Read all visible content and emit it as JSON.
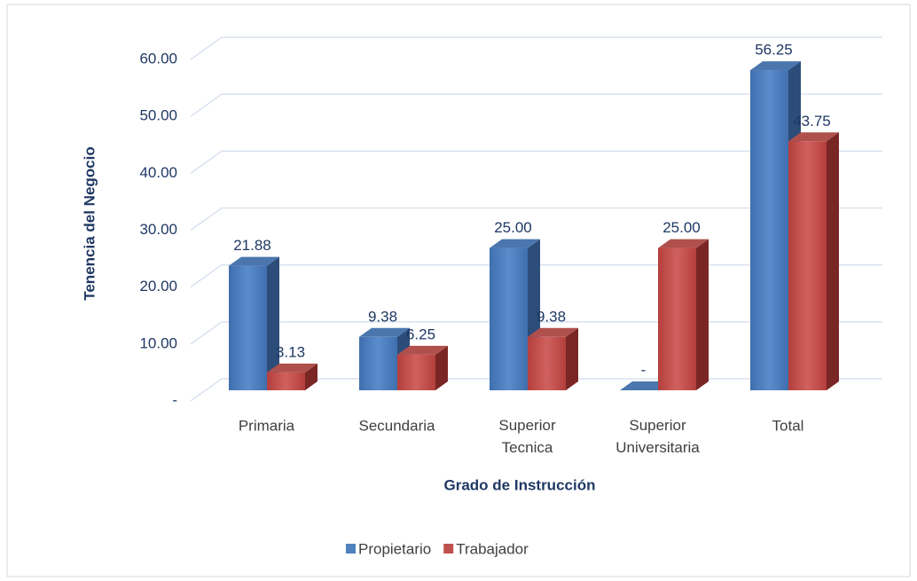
{
  "chart_data": {
    "type": "bar3d",
    "y_label": "Tenencia del Negocio",
    "x_label": "Grado de Instrucción",
    "categories": [
      "Primaria",
      "Secundaria",
      "Superior Tecnica",
      "Superior Universitaria",
      "Total"
    ],
    "series": [
      {
        "name": "Propietario",
        "color": "#4f81bd",
        "values": [
          21.88,
          9.38,
          25,
          0,
          56.25
        ],
        "value_labels": [
          "21.88",
          "9.38",
          "25.00",
          "-",
          "56.25"
        ]
      },
      {
        "name": "Trabajador",
        "color": "#c0504d",
        "values": [
          3.13,
          6.25,
          9.38,
          25,
          43.75
        ],
        "value_labels": [
          "3.13",
          "6.25",
          "9.38",
          "25.00",
          "43.75"
        ]
      }
    ],
    "ylim": [
      0,
      60
    ],
    "yticks": [
      {
        "value": 0,
        "label": "-"
      },
      {
        "value": 10,
        "label": "10.00"
      },
      {
        "value": 20,
        "label": "20.00"
      },
      {
        "value": 30,
        "label": "30.00"
      },
      {
        "value": 40,
        "label": "40.00"
      },
      {
        "value": 50,
        "label": "50.00"
      },
      {
        "value": 60,
        "label": "60.00"
      }
    ],
    "grid": true,
    "legend": "bottom"
  }
}
